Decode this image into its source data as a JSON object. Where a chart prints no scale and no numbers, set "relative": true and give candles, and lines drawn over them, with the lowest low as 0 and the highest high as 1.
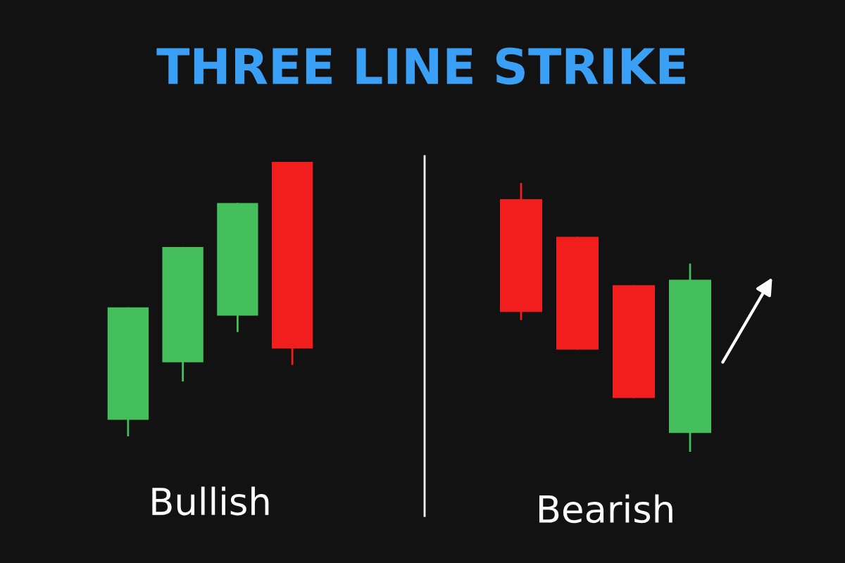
{
  "chart_data": [
    {
      "type": "candlestick",
      "title": "THREE LINE STRIKE",
      "xlabel": "Bullish",
      "relative": true,
      "categories": [
        null,
        null,
        null,
        null
      ],
      "ohlc": [
        [
          0.06,
          0.47,
          0.0,
          0.47
        ],
        [
          0.27,
          0.69,
          0.2,
          0.69
        ],
        [
          0.44,
          0.85,
          0.38,
          0.85
        ],
        [
          1.0,
          1.0,
          0.26,
          0.32
        ]
      ],
      "colors": [
        "#45bf5c",
        "#45bf5c",
        "#45bf5c",
        "#f21d1d"
      ]
    },
    {
      "type": "candlestick",
      "xlabel": "Bearish",
      "relative": true,
      "categories": [
        null,
        null,
        null,
        null
      ],
      "ohlc": [
        [
          0.94,
          1.0,
          0.49,
          0.52
        ],
        [
          0.8,
          0.8,
          0.38,
          0.38
        ],
        [
          0.62,
          0.62,
          0.2,
          0.2
        ],
        [
          0.07,
          0.7,
          0.0,
          0.64
        ]
      ],
      "colors": [
        "#f21d1d",
        "#f21d1d",
        "#f21d1d",
        "#45bf5c"
      ]
    }
  ]
}
